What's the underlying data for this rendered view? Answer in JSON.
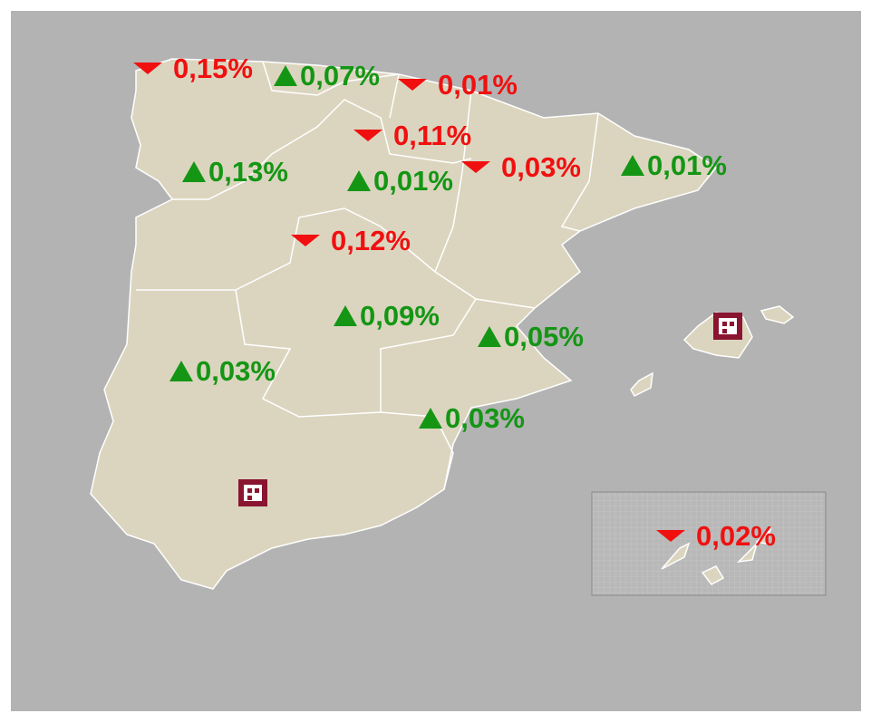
{
  "regions": [
    {
      "label": "0,15%",
      "trend": "down"
    },
    {
      "label": "0,07%",
      "trend": "up"
    },
    {
      "label": "0,01%",
      "trend": "down"
    },
    {
      "label": "0,11%",
      "trend": "down"
    },
    {
      "label": "0,03%",
      "trend": "down"
    },
    {
      "label": "0,01%",
      "trend": "up"
    },
    {
      "label": "0,13%",
      "trend": "up"
    },
    {
      "label": "0,01%",
      "trend": "up"
    },
    {
      "label": "0,12%",
      "trend": "down"
    },
    {
      "label": "0,09%",
      "trend": "up"
    },
    {
      "label": "0,05%",
      "trend": "up"
    },
    {
      "label": "0,03%",
      "trend": "up"
    },
    {
      "label": "0,03%",
      "trend": "up"
    },
    {
      "label": "0,02%",
      "trend": "down"
    }
  ]
}
